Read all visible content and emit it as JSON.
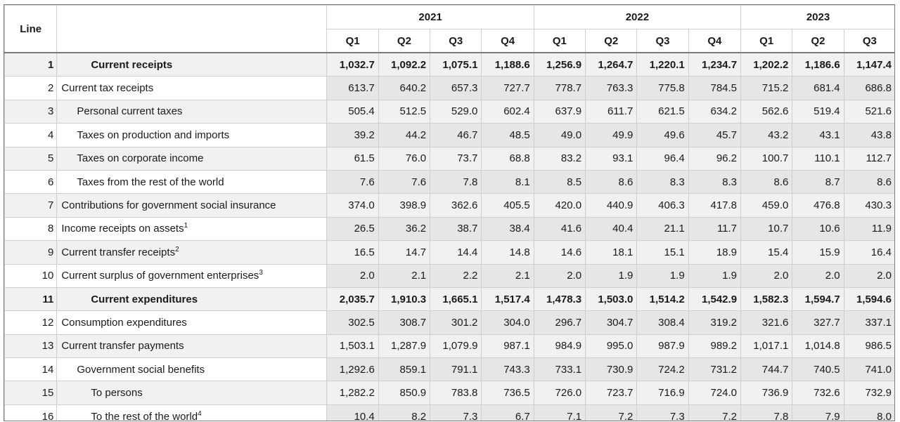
{
  "header": {
    "line_label": "Line",
    "years": [
      "2021",
      "2022",
      "2023"
    ],
    "quarters": [
      "Q1",
      "Q2",
      "Q3",
      "Q4",
      "Q1",
      "Q2",
      "Q3",
      "Q4",
      "Q1",
      "Q2",
      "Q3"
    ]
  },
  "rows": [
    {
      "line": "1",
      "label": "Current receipts",
      "sup": "",
      "indent": "b",
      "bold": true,
      "values": [
        "1,032.7",
        "1,092.2",
        "1,075.1",
        "1,188.6",
        "1,256.9",
        "1,264.7",
        "1,220.1",
        "1,234.7",
        "1,202.2",
        "1,186.6",
        "1,147.4"
      ]
    },
    {
      "line": "2",
      "label": "Current tax receipts",
      "sup": "",
      "indent": "0",
      "bold": false,
      "values": [
        "613.7",
        "640.2",
        "657.3",
        "727.7",
        "778.7",
        "763.3",
        "775.8",
        "784.5",
        "715.2",
        "681.4",
        "686.8"
      ]
    },
    {
      "line": "3",
      "label": "Personal current taxes",
      "sup": "",
      "indent": "1",
      "bold": false,
      "values": [
        "505.4",
        "512.5",
        "529.0",
        "602.4",
        "637.9",
        "611.7",
        "621.5",
        "634.2",
        "562.6",
        "519.4",
        "521.6"
      ]
    },
    {
      "line": "4",
      "label": "Taxes on production and imports",
      "sup": "",
      "indent": "1",
      "bold": false,
      "values": [
        "39.2",
        "44.2",
        "46.7",
        "48.5",
        "49.0",
        "49.9",
        "49.6",
        "45.7",
        "43.2",
        "43.1",
        "43.8"
      ]
    },
    {
      "line": "5",
      "label": "Taxes on corporate income",
      "sup": "",
      "indent": "1",
      "bold": false,
      "values": [
        "61.5",
        "76.0",
        "73.7",
        "68.8",
        "83.2",
        "93.1",
        "96.4",
        "96.2",
        "100.7",
        "110.1",
        "112.7"
      ]
    },
    {
      "line": "6",
      "label": "Taxes from the rest of the world",
      "sup": "",
      "indent": "1",
      "bold": false,
      "values": [
        "7.6",
        "7.6",
        "7.8",
        "8.1",
        "8.5",
        "8.6",
        "8.3",
        "8.3",
        "8.6",
        "8.7",
        "8.6"
      ]
    },
    {
      "line": "7",
      "label": "Contributions for government social insurance",
      "sup": "",
      "indent": "0",
      "bold": false,
      "values": [
        "374.0",
        "398.9",
        "362.6",
        "405.5",
        "420.0",
        "440.9",
        "406.3",
        "417.8",
        "459.0",
        "476.8",
        "430.3"
      ]
    },
    {
      "line": "8",
      "label": "Income receipts on assets",
      "sup": "1",
      "indent": "0",
      "bold": false,
      "values": [
        "26.5",
        "36.2",
        "38.7",
        "38.4",
        "41.6",
        "40.4",
        "21.1",
        "11.7",
        "10.7",
        "10.6",
        "11.9"
      ]
    },
    {
      "line": "9",
      "label": "Current transfer receipts",
      "sup": "2",
      "indent": "0",
      "bold": false,
      "values": [
        "16.5",
        "14.7",
        "14.4",
        "14.8",
        "14.6",
        "18.1",
        "15.1",
        "18.9",
        "15.4",
        "15.9",
        "16.4"
      ]
    },
    {
      "line": "10",
      "label": "Current surplus of government enterprises",
      "sup": "3",
      "indent": "0",
      "bold": false,
      "values": [
        "2.0",
        "2.1",
        "2.2",
        "2.1",
        "2.0",
        "1.9",
        "1.9",
        "1.9",
        "2.0",
        "2.0",
        "2.0"
      ]
    },
    {
      "line": "11",
      "label": "Current expenditures",
      "sup": "",
      "indent": "b",
      "bold": true,
      "values": [
        "2,035.7",
        "1,910.3",
        "1,665.1",
        "1,517.4",
        "1,478.3",
        "1,503.0",
        "1,514.2",
        "1,542.9",
        "1,582.3",
        "1,594.7",
        "1,594.6"
      ]
    },
    {
      "line": "12",
      "label": "Consumption expenditures",
      "sup": "",
      "indent": "0",
      "bold": false,
      "values": [
        "302.5",
        "308.7",
        "301.2",
        "304.0",
        "296.7",
        "304.7",
        "308.4",
        "319.2",
        "321.6",
        "327.7",
        "337.1"
      ]
    },
    {
      "line": "13",
      "label": "Current transfer payments",
      "sup": "",
      "indent": "0",
      "bold": false,
      "values": [
        "1,503.1",
        "1,287.9",
        "1,079.9",
        "987.1",
        "984.9",
        "995.0",
        "987.9",
        "989.2",
        "1,017.1",
        "1,014.8",
        "986.5"
      ]
    },
    {
      "line": "14",
      "label": "Government social benefits",
      "sup": "",
      "indent": "1",
      "bold": false,
      "values": [
        "1,292.6",
        "859.1",
        "791.1",
        "743.3",
        "733.1",
        "730.9",
        "724.2",
        "731.2",
        "744.7",
        "740.5",
        "741.0"
      ]
    },
    {
      "line": "15",
      "label": "To persons",
      "sup": "",
      "indent": "2",
      "bold": false,
      "values": [
        "1,282.2",
        "850.9",
        "783.8",
        "736.5",
        "726.0",
        "723.7",
        "716.9",
        "724.0",
        "736.9",
        "732.6",
        "732.9"
      ]
    },
    {
      "line": "16",
      "label": "To the rest of the world",
      "sup": "4",
      "indent": "2",
      "bold": false,
      "values": [
        "10.4",
        "8.2",
        "7.3",
        "6.7",
        "7.1",
        "7.2",
        "7.3",
        "7.2",
        "7.8",
        "7.9",
        "8.0"
      ]
    }
  ]
}
